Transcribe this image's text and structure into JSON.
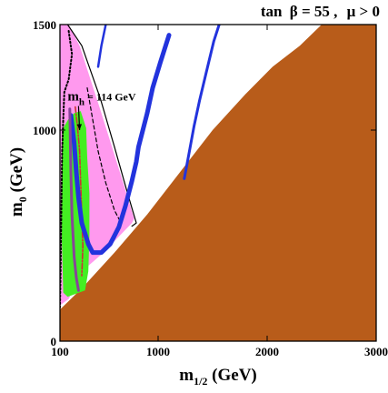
{
  "chart_data": {
    "type": "area",
    "title_parts": {
      "tan": "tan",
      "beta": "β = 55 ,",
      "mu": "μ > 0"
    },
    "xlabel_parts": {
      "base": "m",
      "sub": "1/2",
      "unit": " (GeV)"
    },
    "ylabel_parts": {
      "base": "m",
      "sub": "0",
      "unit": " (GeV)"
    },
    "xlim": [
      100,
      3000
    ],
    "ylim": [
      0,
      1500
    ],
    "x_ticks": [
      {
        "value": 100,
        "label": "100"
      },
      {
        "value": 1000,
        "label": "1000"
      },
      {
        "value": 2000,
        "label": "2000"
      },
      {
        "value": 3000,
        "label": "3000"
      }
    ],
    "y_ticks": [
      {
        "value": 0,
        "label": "0"
      },
      {
        "value": 1000,
        "label": "1000"
      },
      {
        "value": 1500,
        "label": "1500"
      }
    ],
    "annotation": {
      "base": "m",
      "sub": "h",
      "rest": " = 114 GeV",
      "x": 420,
      "y": 1140,
      "arrow_to": [
        280,
        1000
      ]
    },
    "regions": [
      {
        "name": "charged LSP (excluded)",
        "color": "#b85c1a",
        "points": [
          [
            100,
            150
          ],
          [
            300,
            250
          ],
          [
            600,
            420
          ],
          [
            900,
            600
          ],
          [
            1200,
            800
          ],
          [
            1500,
            1000
          ],
          [
            1800,
            1170
          ],
          [
            2050,
            1300
          ],
          [
            2300,
            1400
          ],
          [
            2500,
            1500
          ],
          [
            3000,
            1500
          ],
          [
            3000,
            0
          ],
          [
            100,
            0
          ]
        ]
      },
      {
        "name": "g-2 favoured (pink)",
        "color": "#ff99ee",
        "points": [
          [
            100,
            1500
          ],
          [
            180,
            1500
          ],
          [
            280,
            1400
          ],
          [
            480,
            1080
          ],
          [
            650,
            800
          ],
          [
            780,
            580
          ],
          [
            760,
            560
          ],
          [
            500,
            420
          ],
          [
            300,
            330
          ],
          [
            180,
            200
          ],
          [
            100,
            170
          ]
        ]
      },
      {
        "name": "b → sγ excluded (green)",
        "color": "#44ee22",
        "points": [
          [
            120,
            1000
          ],
          [
            175,
            1050
          ],
          [
            230,
            1080
          ],
          [
            290,
            1090
          ],
          [
            340,
            1010
          ],
          [
            350,
            870
          ],
          [
            370,
            700
          ],
          [
            370,
            500
          ],
          [
            360,
            330
          ],
          [
            330,
            240
          ],
          [
            170,
            210
          ],
          [
            130,
            230
          ],
          [
            110,
            600
          ]
        ]
      }
    ],
    "series": [
      {
        "style": "solid-thin",
        "color": "#000000",
        "points": [
          [
            170,
            1500
          ],
          [
            300,
            1400
          ],
          [
            470,
            1150
          ],
          [
            600,
            920
          ],
          [
            720,
            700
          ],
          [
            800,
            560
          ],
          [
            760,
            545
          ]
        ]
      },
      {
        "style": "dashed",
        "color": "#000000",
        "points": [
          [
            350,
            1200
          ],
          [
            400,
            1050
          ],
          [
            450,
            900
          ],
          [
            520,
            750
          ],
          [
            600,
            620
          ],
          [
            660,
            560
          ]
        ]
      },
      {
        "style": "dotted",
        "color": "#000000",
        "points": [
          [
            180,
            1470
          ],
          [
            210,
            1360
          ],
          [
            180,
            1240
          ],
          [
            140,
            1180
          ],
          [
            130,
            1050
          ],
          [
            120,
            900
          ],
          [
            115,
            700
          ],
          [
            110,
            500
          ],
          [
            105,
            300
          ],
          [
            100,
            160
          ]
        ]
      },
      {
        "style": "dash-dot",
        "color": "#cc3333",
        "points": [
          [
            240,
            1110
          ],
          [
            260,
            1020
          ],
          [
            280,
            900
          ],
          [
            290,
            750
          ],
          [
            300,
            600
          ],
          [
            310,
            450
          ],
          [
            300,
            310
          ]
        ]
      },
      {
        "style": "thick-band",
        "color": "#2233dd",
        "points": [
          [
            200,
            1070
          ],
          [
            230,
            940
          ],
          [
            250,
            800
          ],
          [
            270,
            680
          ],
          [
            300,
            560
          ],
          [
            360,
            460
          ],
          [
            400,
            420
          ],
          [
            480,
            420
          ],
          [
            560,
            460
          ],
          [
            640,
            540
          ],
          [
            700,
            640
          ],
          [
            760,
            760
          ],
          [
            800,
            850
          ],
          [
            820,
            920
          ],
          [
            900,
            1080
          ],
          [
            950,
            1200
          ],
          [
            1020,
            1320
          ],
          [
            1100,
            1450
          ]
        ]
      },
      {
        "style": "thin-band",
        "color": "#2233dd",
        "points": [
          [
            1240,
            770
          ],
          [
            1280,
            880
          ],
          [
            1330,
            1020
          ],
          [
            1380,
            1140
          ],
          [
            1440,
            1270
          ],
          [
            1510,
            1420
          ],
          [
            1560,
            1500
          ]
        ]
      },
      {
        "style": "band-top",
        "color": "#2233dd",
        "points": [
          [
            450,
            1300
          ],
          [
            480,
            1400
          ],
          [
            520,
            1500
          ]
        ]
      },
      {
        "style": "purple",
        "color": "#884499",
        "points": [
          [
            190,
            1100
          ],
          [
            200,
            800
          ],
          [
            210,
            600
          ],
          [
            230,
            400
          ],
          [
            250,
            300
          ],
          [
            270,
            240
          ]
        ]
      }
    ]
  }
}
